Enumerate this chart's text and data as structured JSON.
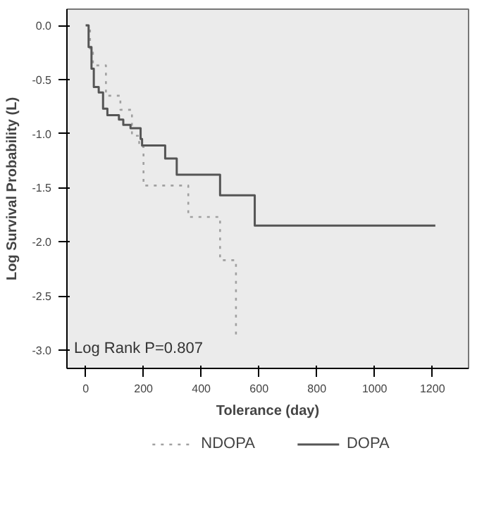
{
  "chart_data": {
    "type": "step",
    "xlabel": "Tolerance (day)",
    "ylabel": "Log Survival Probability (L)",
    "xlim": [
      -65,
      1325
    ],
    "ylim": [
      -3.17,
      0.15
    ],
    "xticks": [
      0,
      200,
      400,
      600,
      800,
      1000,
      1200
    ],
    "yticks": [
      {
        "value": 0,
        "label": "0.0"
      },
      {
        "value": -0.5,
        "label": "-0.5"
      },
      {
        "value": -1,
        "label": "-1.0"
      },
      {
        "value": -1.5,
        "label": "-1.5"
      },
      {
        "value": -2,
        "label": "-2.0"
      },
      {
        "value": -2.5,
        "label": "-2.5"
      },
      {
        "value": -3,
        "label": "-3.0"
      }
    ],
    "series": [
      {
        "name": "NDOPA",
        "color": "#a0a0a0",
        "line_style": "dotted",
        "x": [
          0,
          15,
          25,
          70,
          120,
          160,
          185,
          200,
          355,
          465,
          520
        ],
        "values": [
          0,
          -0.25,
          -0.37,
          -0.65,
          -0.78,
          -1.02,
          -1.12,
          -1.48,
          -1.77,
          -2.17,
          -2.87
        ]
      },
      {
        "name": "DOPA",
        "color": "#555555",
        "line_style": "solid",
        "x": [
          0,
          10,
          20,
          28,
          45,
          60,
          75,
          115,
          130,
          155,
          190,
          195,
          275,
          315,
          465,
          585,
          1210
        ],
        "values": [
          0,
          -0.2,
          -0.4,
          -0.57,
          -0.62,
          -0.77,
          -0.83,
          -0.87,
          -0.92,
          -0.95,
          -1.05,
          -1.11,
          -1.23,
          -1.38,
          -1.57,
          -1.85,
          -1.85
        ]
      }
    ],
    "annotations": [
      "Log Rank P=0.807"
    ],
    "legend": "bottom"
  }
}
